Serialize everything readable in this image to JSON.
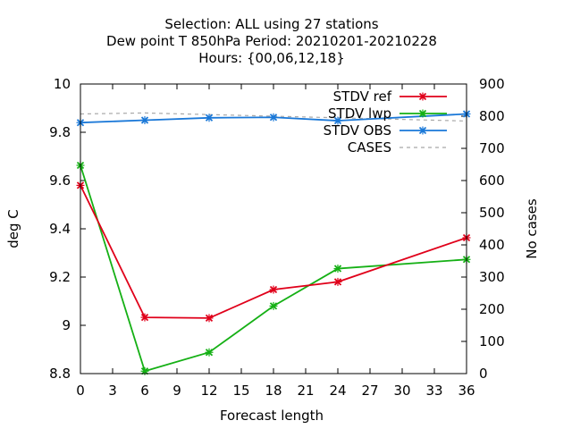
{
  "chart_data": {
    "type": "line",
    "title_lines": [
      "Selection: ALL using    27 stations",
      "Dew point T 850hPa   Period: 20210201-20210228",
      "Hours: {00,06,12,18}"
    ],
    "xlabel": "Forecast length",
    "ylabel": "deg C",
    "y2label": "No cases",
    "xlim": [
      0,
      36
    ],
    "ylim": [
      8.8,
      10
    ],
    "y2lim": [
      0,
      900
    ],
    "x_ticks": [
      0,
      3,
      6,
      9,
      12,
      15,
      18,
      21,
      24,
      27,
      30,
      33,
      36
    ],
    "y_ticks": [
      8.8,
      9,
      9.2,
      9.4,
      9.6,
      9.8,
      10
    ],
    "y_tick_labels": [
      "8.8",
      "9",
      "9.2",
      "9.4",
      "9.6",
      "9.8",
      "10"
    ],
    "y2_ticks": [
      0,
      100,
      200,
      300,
      400,
      500,
      600,
      700,
      800,
      900
    ],
    "legend_position": "top-right",
    "series": [
      {
        "name": "STDV ref",
        "color": "#e0001a",
        "axis": "y",
        "style": "line-points",
        "x": [
          0,
          6,
          12,
          18,
          24,
          36
        ],
        "values": [
          9.58,
          9.033,
          9.03,
          9.148,
          9.18,
          9.363
        ]
      },
      {
        "name": "STDV lwp",
        "color": "#15b015",
        "axis": "y",
        "style": "line-points",
        "x": [
          0,
          6,
          12,
          18,
          24,
          36
        ],
        "values": [
          9.663,
          8.81,
          8.888,
          9.08,
          9.235,
          9.273
        ]
      },
      {
        "name": "STDV OBS",
        "color": "#1a78d8",
        "axis": "y",
        "style": "line-points",
        "x": [
          0,
          6,
          12,
          18,
          24,
          36
        ],
        "values": [
          9.84,
          9.85,
          9.86,
          9.862,
          9.848,
          9.876
        ]
      },
      {
        "name": "CASES",
        "color": "#a8a8a8",
        "axis": "y2",
        "style": "dashed",
        "x": [
          0,
          6,
          12,
          18,
          24,
          36
        ],
        "values": [
          807,
          810,
          805,
          800,
          795,
          785
        ]
      }
    ]
  }
}
